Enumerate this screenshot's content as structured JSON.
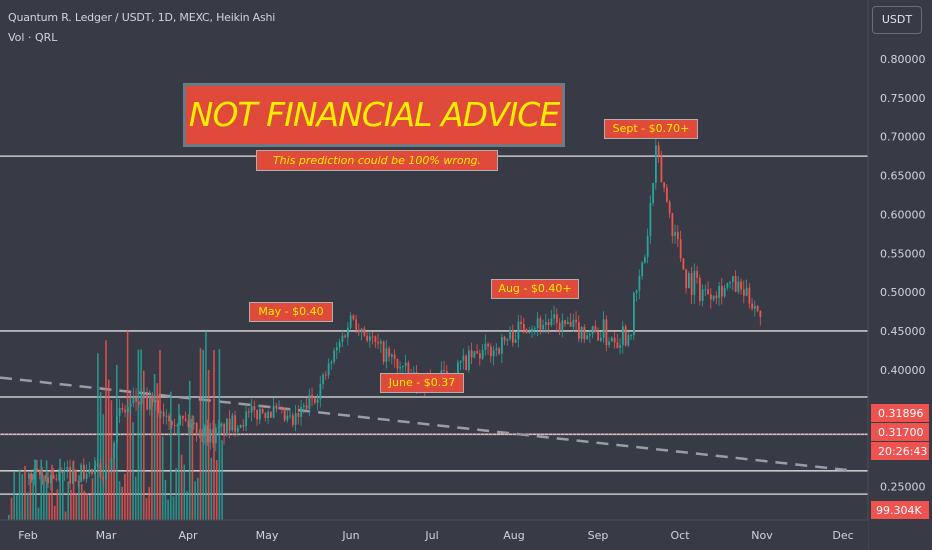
{
  "header": {
    "title": "Quantum R. Ledger / USDT, 1D, MEXC, Heikin Ashi",
    "volume_label": "Vol · QRL",
    "currency_button": "USDT"
  },
  "annotations": {
    "banner": "NOT FINANCIAL ADVICE",
    "banner_sub": "This prediction could be 100% wrong.",
    "notes": [
      "May - $0.40",
      "June - $0.37",
      "Aug - $0.40+",
      "Sept - $0.70+"
    ]
  },
  "colors": {
    "background": "#383a45",
    "up": "#26a69a",
    "down": "#ef5350",
    "label_bg": "#e04a3a",
    "label_text": "#ffee00",
    "hline": "#c8c8c8",
    "trendline": "#9a9ca6"
  },
  "chart_data": {
    "type": "candlestick",
    "x_axis": {
      "labels": [
        "Feb",
        "Mar",
        "Apr",
        "May",
        "Jun",
        "Jul",
        "Aug",
        "Sep",
        "Oct",
        "Nov",
        "Dec"
      ]
    },
    "y_axis": {
      "labels": [
        "0.80000",
        "0.75000",
        "0.70000",
        "0.65000",
        "0.60000",
        "0.55000",
        "0.50000",
        "0.45000",
        "0.40000",
        "0.25000"
      ],
      "values": [
        0.8,
        0.75,
        0.7,
        0.65,
        0.6,
        0.55,
        0.5,
        0.45,
        0.4,
        0.25
      ],
      "range": [
        0.22,
        0.86
      ]
    },
    "price_tags": [
      {
        "text": "0.31896",
        "value": 0.31896
      },
      {
        "text": "0.31700",
        "value": 0.317
      },
      {
        "text": "20:26:43",
        "value": null
      }
    ],
    "volume_tag": "99.304K",
    "horizontal_levels": [
      0.675,
      0.45,
      0.365,
      0.317,
      0.27,
      0.24
    ],
    "trendline": {
      "start": [
        "late Jan",
        0.39
      ],
      "end": [
        "late Dec",
        0.27
      ]
    },
    "price_path": [
      [
        "Feb 1",
        0.26
      ],
      [
        "Mar 1",
        0.27
      ],
      [
        "Mar 5",
        0.34
      ],
      [
        "Mar 12",
        0.36
      ],
      [
        "Mar 20",
        0.35
      ],
      [
        "Apr 1",
        0.33
      ],
      [
        "Apr 10",
        0.315
      ],
      [
        "Apr 20",
        0.335
      ],
      [
        "May 1",
        0.35
      ],
      [
        "May 10",
        0.33
      ],
      [
        "May 20",
        0.38
      ],
      [
        "Jun 1",
        0.47
      ],
      [
        "Jun 10",
        0.43
      ],
      [
        "Jun 25",
        0.385
      ],
      [
        "Jul 5",
        0.39
      ],
      [
        "Jul 15",
        0.415
      ],
      [
        "Jul 25",
        0.43
      ],
      [
        "Aug 5",
        0.46
      ],
      [
        "Aug 15",
        0.46
      ],
      [
        "Aug 25",
        0.45
      ],
      [
        "Sep 5",
        0.445
      ],
      [
        "Sep 12",
        0.45
      ],
      [
        "Sep 18",
        0.55
      ],
      [
        "Sep 22",
        0.675
      ],
      [
        "Sep 27",
        0.6
      ],
      [
        "Oct 3",
        0.52
      ],
      [
        "Oct 10",
        0.5
      ],
      [
        "Oct 20",
        0.51
      ],
      [
        "Oct 28",
        0.485
      ],
      [
        "Oct 31",
        0.47
      ]
    ]
  }
}
